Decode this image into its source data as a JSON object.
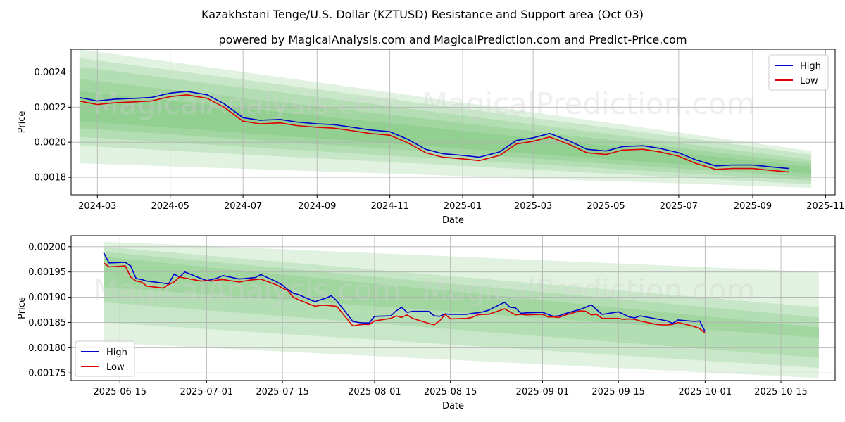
{
  "title": "Kazakhstani Tenge/U.S. Dollar (KZTUSD) Resistance and Support area (Oct 03)",
  "subtitle": "powered by MagicalAnalysis.com and MagicalPrediction.com and Predict-Price.com",
  "watermarks": [
    "MagicalAnalysis.com",
    "MagicalPrediction.com"
  ],
  "colors": {
    "high": "#0000cc",
    "low": "#dd0000",
    "band": "#4caf50",
    "grid": "#b0b0b0"
  },
  "chart_data": [
    {
      "type": "line",
      "xlabel": "Date",
      "ylabel": "Price",
      "legend": {
        "position": "top-right",
        "entries": [
          "High",
          "Low"
        ]
      },
      "xlim": [
        "2024-02-08",
        "2025-11-09"
      ],
      "ylim": [
        0.0017,
        0.00253
      ],
      "xticks": [
        "2024-03",
        "2024-05",
        "2024-07",
        "2024-09",
        "2024-11",
        "2025-01",
        "2025-03",
        "2025-05",
        "2025-07",
        "2025-09",
        "2025-11"
      ],
      "yticks": [
        "0.0018",
        "0.0020",
        "0.0022",
        "0.0024"
      ],
      "band_range": [
        "2024-02-15",
        "2025-10-20"
      ],
      "bands": [
        {
          "start": [
            0.00188,
            0.00253
          ],
          "end": [
            0.00174,
            0.00195
          ]
        },
        {
          "start": [
            0.00198,
            0.00248
          ],
          "end": [
            0.00176,
            0.00193
          ]
        },
        {
          "start": [
            0.00203,
            0.00243
          ],
          "end": [
            0.00178,
            0.0019
          ]
        },
        {
          "start": [
            0.00208,
            0.00236
          ],
          "end": [
            0.0018,
            0.00188
          ]
        },
        {
          "start": [
            0.00212,
            0.00229
          ],
          "end": [
            0.00182,
            0.00186
          ]
        }
      ],
      "series": [
        {
          "name": "High",
          "x": [
            "2024-02-15",
            "2024-03-01",
            "2024-03-15",
            "2024-04-01",
            "2024-04-15",
            "2024-05-01",
            "2024-05-15",
            "2024-06-01",
            "2024-06-15",
            "2024-07-01",
            "2024-07-15",
            "2024-08-01",
            "2024-08-15",
            "2024-09-01",
            "2024-09-15",
            "2024-10-01",
            "2024-10-15",
            "2024-11-01",
            "2024-11-15",
            "2024-12-01",
            "2024-12-15",
            "2025-01-01",
            "2025-01-15",
            "2025-02-01",
            "2025-02-15",
            "2025-03-01",
            "2025-03-15",
            "2025-04-01",
            "2025-04-15",
            "2025-05-01",
            "2025-05-15",
            "2025-06-01",
            "2025-06-15",
            "2025-07-01",
            "2025-07-15",
            "2025-08-01",
            "2025-08-15",
            "2025-09-01",
            "2025-09-15",
            "2025-10-01"
          ],
          "values": [
            0.002255,
            0.002235,
            0.002245,
            0.00225,
            0.002255,
            0.00228,
            0.00229,
            0.00227,
            0.00222,
            0.00214,
            0.002125,
            0.00213,
            0.002115,
            0.002105,
            0.0021,
            0.002085,
            0.00207,
            0.00206,
            0.00202,
            0.00196,
            0.001935,
            0.001925,
            0.001915,
            0.001945,
            0.00201,
            0.002025,
            0.00205,
            0.002005,
            0.00196,
            0.00195,
            0.001975,
            0.00198,
            0.001965,
            0.00194,
            0.0019,
            0.001865,
            0.00187,
            0.00187,
            0.00186,
            0.00185
          ]
        },
        {
          "name": "Low",
          "x": [
            "2024-02-15",
            "2024-03-01",
            "2024-03-15",
            "2024-04-01",
            "2024-04-15",
            "2024-05-01",
            "2024-05-15",
            "2024-06-01",
            "2024-06-15",
            "2024-07-01",
            "2024-07-15",
            "2024-08-01",
            "2024-08-15",
            "2024-09-01",
            "2024-09-15",
            "2024-10-01",
            "2024-10-15",
            "2024-11-01",
            "2024-11-15",
            "2024-12-01",
            "2024-12-15",
            "2025-01-01",
            "2025-01-15",
            "2025-02-01",
            "2025-02-15",
            "2025-03-01",
            "2025-03-15",
            "2025-04-01",
            "2025-04-15",
            "2025-05-01",
            "2025-05-15",
            "2025-06-01",
            "2025-06-15",
            "2025-07-01",
            "2025-07-15",
            "2025-08-01",
            "2025-08-15",
            "2025-09-01",
            "2025-09-15",
            "2025-10-01"
          ],
          "values": [
            0.002235,
            0.002215,
            0.002225,
            0.00223,
            0.002235,
            0.00226,
            0.00227,
            0.00225,
            0.0022,
            0.00212,
            0.002105,
            0.00211,
            0.002095,
            0.002085,
            0.00208,
            0.002065,
            0.00205,
            0.00204,
            0.002,
            0.00194,
            0.001915,
            0.001905,
            0.001895,
            0.001925,
            0.00199,
            0.002005,
            0.00203,
            0.001985,
            0.00194,
            0.00193,
            0.001955,
            0.00196,
            0.001945,
            0.00192,
            0.00188,
            0.001845,
            0.00185,
            0.00185,
            0.00184,
            0.00183
          ]
        }
      ]
    },
    {
      "type": "line",
      "xlabel": "Date",
      "ylabel": "Price",
      "legend": {
        "position": "bottom-left",
        "entries": [
          "High",
          "Low"
        ]
      },
      "xlim": [
        "2025-06-06",
        "2025-10-25"
      ],
      "ylim": [
        0.001735,
        0.002022
      ],
      "xticks": [
        "2025-06-15",
        "2025-07-01",
        "2025-07-15",
        "2025-08-01",
        "2025-08-15",
        "2025-09-01",
        "2025-09-15",
        "2025-10-01",
        "2025-10-15"
      ],
      "yticks": [
        "0.00175",
        "0.00180",
        "0.00185",
        "0.00190",
        "0.00195",
        "0.00200"
      ],
      "band_range": [
        "2025-06-12",
        "2025-10-22"
      ],
      "bands": [
        {
          "start": [
            0.00181,
            0.00201
          ],
          "end": [
            0.00174,
            0.00195
          ]
        },
        {
          "start": [
            0.00185,
            0.002
          ],
          "end": [
            0.00176,
            0.00188
          ]
        },
        {
          "start": [
            0.00189,
            0.00199
          ],
          "end": [
            0.00178,
            0.00186
          ]
        },
        {
          "start": [
            0.00192,
            0.00198
          ],
          "end": [
            0.00182,
            0.00184
          ]
        }
      ],
      "series": [
        {
          "name": "High",
          "x": [
            "2025-06-12",
            "2025-06-13",
            "2025-06-16",
            "2025-06-17",
            "2025-06-18",
            "2025-06-19",
            "2025-06-20",
            "2025-06-23",
            "2025-06-24",
            "2025-06-25",
            "2025-06-26",
            "2025-06-27",
            "2025-06-30",
            "2025-07-01",
            "2025-07-02",
            "2025-07-03",
            "2025-07-04",
            "2025-07-07",
            "2025-07-08",
            "2025-07-09",
            "2025-07-10",
            "2025-07-11",
            "2025-07-14",
            "2025-07-15",
            "2025-07-16",
            "2025-07-17",
            "2025-07-18",
            "2025-07-21",
            "2025-07-22",
            "2025-07-23",
            "2025-07-24",
            "2025-07-25",
            "2025-07-28",
            "2025-07-29",
            "2025-07-30",
            "2025-07-31",
            "2025-08-01",
            "2025-08-04",
            "2025-08-05",
            "2025-08-06",
            "2025-08-07",
            "2025-08-08",
            "2025-08-11",
            "2025-08-12",
            "2025-08-13",
            "2025-08-14",
            "2025-08-15",
            "2025-08-18",
            "2025-08-19",
            "2025-08-20",
            "2025-08-21",
            "2025-08-22",
            "2025-08-25",
            "2025-08-26",
            "2025-08-27",
            "2025-08-28",
            "2025-08-29",
            "2025-09-01",
            "2025-09-02",
            "2025-09-03",
            "2025-09-04",
            "2025-09-05",
            "2025-09-08",
            "2025-09-09",
            "2025-09-10",
            "2025-09-11",
            "2025-09-12",
            "2025-09-15",
            "2025-09-16",
            "2025-09-17",
            "2025-09-18",
            "2025-09-19",
            "2025-09-22",
            "2025-09-23",
            "2025-09-24",
            "2025-09-25",
            "2025-09-26",
            "2025-09-29",
            "2025-09-30",
            "2025-10-01"
          ],
          "values": [
            0.001988,
            0.001968,
            0.001969,
            0.001962,
            0.001937,
            0.001935,
            0.001932,
            0.001928,
            0.001926,
            0.001946,
            0.00194,
            0.00195,
            0.001937,
            0.001933,
            0.001935,
            0.001938,
            0.001943,
            0.001936,
            0.001937,
            0.001938,
            0.001939,
            0.001945,
            0.00193,
            0.001924,
            0.001915,
            0.001908,
            0.001905,
            0.001891,
            0.001895,
            0.001898,
            0.001903,
            0.001893,
            0.001852,
            0.00185,
            0.001849,
            0.001849,
            0.001862,
            0.001863,
            0.001873,
            0.00188,
            0.00187,
            0.001872,
            0.001872,
            0.001863,
            0.001862,
            0.001867,
            0.001866,
            0.001866,
            0.001868,
            0.001869,
            0.001871,
            0.001874,
            0.00189,
            0.00188,
            0.001879,
            0.001868,
            0.001869,
            0.00187,
            0.001866,
            0.001862,
            0.001863,
            0.001867,
            0.001876,
            0.00188,
            0.001885,
            0.001875,
            0.001866,
            0.001871,
            0.001866,
            0.001861,
            0.001859,
            0.001863,
            0.001857,
            0.001855,
            0.001853,
            0.001848,
            0.001855,
            0.001852,
            0.001853,
            0.001832
          ]
        },
        {
          "name": "Low",
          "x": [
            "2025-06-12",
            "2025-06-13",
            "2025-06-16",
            "2025-06-17",
            "2025-06-18",
            "2025-06-19",
            "2025-06-20",
            "2025-06-23",
            "2025-06-24",
            "2025-06-25",
            "2025-06-26",
            "2025-06-27",
            "2025-06-30",
            "2025-07-01",
            "2025-07-02",
            "2025-07-03",
            "2025-07-04",
            "2025-07-07",
            "2025-07-08",
            "2025-07-09",
            "2025-07-10",
            "2025-07-11",
            "2025-07-14",
            "2025-07-15",
            "2025-07-16",
            "2025-07-17",
            "2025-07-18",
            "2025-07-21",
            "2025-07-22",
            "2025-07-23",
            "2025-07-24",
            "2025-07-25",
            "2025-07-28",
            "2025-07-29",
            "2025-07-30",
            "2025-07-31",
            "2025-08-01",
            "2025-08-04",
            "2025-08-05",
            "2025-08-06",
            "2025-08-07",
            "2025-08-08",
            "2025-08-11",
            "2025-08-12",
            "2025-08-13",
            "2025-08-14",
            "2025-08-15",
            "2025-08-18",
            "2025-08-19",
            "2025-08-20",
            "2025-08-21",
            "2025-08-22",
            "2025-08-25",
            "2025-08-26",
            "2025-08-27",
            "2025-08-28",
            "2025-08-29",
            "2025-09-01",
            "2025-09-02",
            "2025-09-03",
            "2025-09-04",
            "2025-09-05",
            "2025-09-08",
            "2025-09-09",
            "2025-09-10",
            "2025-09-11",
            "2025-09-12",
            "2025-09-15",
            "2025-09-16",
            "2025-09-17",
            "2025-09-18",
            "2025-09-19",
            "2025-09-22",
            "2025-09-23",
            "2025-09-24",
            "2025-09-25",
            "2025-09-26",
            "2025-09-29",
            "2025-09-30",
            "2025-10-01"
          ],
          "values": [
            0.001968,
            0.00196,
            0.001962,
            0.00194,
            0.001932,
            0.00193,
            0.001922,
            0.001918,
            0.001925,
            0.00193,
            0.00194,
            0.001938,
            0.001932,
            0.001933,
            0.001932,
            0.001934,
            0.001935,
            0.00193,
            0.001932,
            0.001934,
            0.001935,
            0.001936,
            0.001924,
            0.001918,
            0.001913,
            0.0019,
            0.001895,
            0.001882,
            0.001884,
            0.001884,
            0.001883,
            0.001882,
            0.001843,
            0.001845,
            0.001846,
            0.001846,
            0.001853,
            0.001858,
            0.001863,
            0.00186,
            0.001865,
            0.001858,
            0.001848,
            0.001845,
            0.001853,
            0.001866,
            0.001857,
            0.001858,
            0.00186,
            0.001865,
            0.001866,
            0.001866,
            0.001877,
            0.001871,
            0.001865,
            0.001866,
            0.001865,
            0.001866,
            0.001861,
            0.001861,
            0.00186,
            0.001864,
            0.001873,
            0.001872,
            0.001865,
            0.001866,
            0.001858,
            0.001858,
            0.001856,
            0.001857,
            0.001856,
            0.001853,
            0.001846,
            0.001845,
            0.001845,
            0.001846,
            0.00185,
            0.001842,
            0.001838,
            0.001829
          ]
        }
      ]
    }
  ]
}
